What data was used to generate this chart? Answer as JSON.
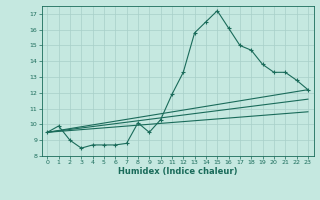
{
  "xlabel": "Humidex (Indice chaleur)",
  "bg_color": "#c5e8e0",
  "line_color": "#1a6b5a",
  "grid_color": "#a8cfc8",
  "xlim": [
    -0.5,
    23.5
  ],
  "ylim": [
    8,
    17.5
  ],
  "xticks": [
    0,
    1,
    2,
    3,
    4,
    5,
    6,
    7,
    8,
    9,
    10,
    11,
    12,
    13,
    14,
    15,
    16,
    17,
    18,
    19,
    20,
    21,
    22,
    23
  ],
  "yticks": [
    8,
    9,
    10,
    11,
    12,
    13,
    14,
    15,
    16,
    17
  ],
  "series": [
    {
      "x": [
        0,
        1,
        2,
        3,
        4,
        5,
        6,
        7,
        8,
        9,
        10,
        11,
        12,
        13,
        14,
        15,
        16,
        17,
        18,
        19,
        20,
        21,
        22,
        23
      ],
      "y": [
        9.5,
        9.9,
        9.0,
        8.5,
        8.7,
        8.7,
        8.7,
        8.8,
        10.1,
        9.5,
        10.3,
        11.9,
        13.3,
        15.8,
        16.5,
        17.2,
        16.1,
        15.0,
        14.7,
        13.8,
        13.3,
        13.3,
        12.8,
        12.2
      ],
      "marker": "+"
    },
    {
      "x": [
        0,
        23
      ],
      "y": [
        9.5,
        12.2
      ],
      "marker": null
    },
    {
      "x": [
        0,
        23
      ],
      "y": [
        9.5,
        11.6
      ],
      "marker": null
    },
    {
      "x": [
        0,
        23
      ],
      "y": [
        9.5,
        10.8
      ],
      "marker": null
    }
  ]
}
